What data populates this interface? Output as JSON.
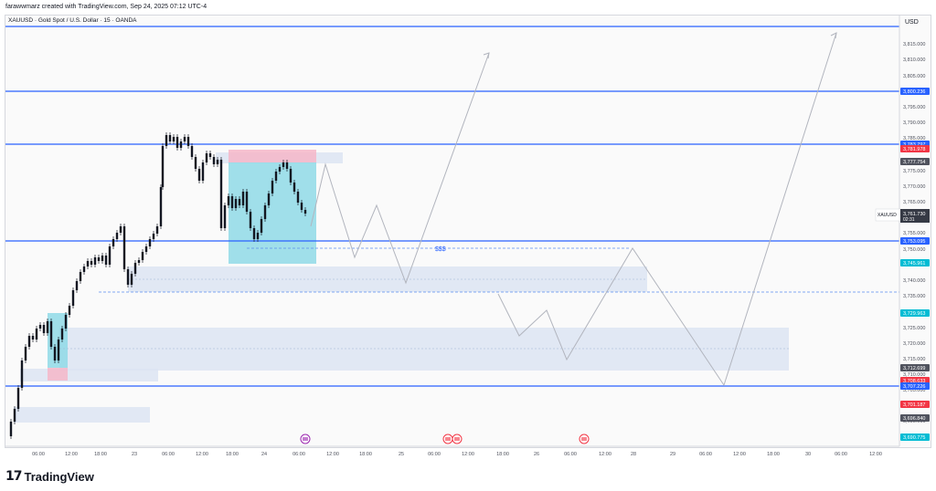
{
  "header": {
    "caption": "farawwmarz created with TradingView.com, Sep 24, 2025 07:12 UTC-4",
    "symbol_line": "XAUUSD · Gold Spot / U.S. Dollar · 15 · OANDA",
    "currency": "USD"
  },
  "price_axis": {
    "ticks": [
      "3,815.000",
      "3,810.000",
      "3,805.000",
      "3,795.000",
      "3,790.000",
      "3,785.000",
      "3,775.000",
      "3,770.000",
      "3,765.000",
      "3,755.000",
      "3,750.000",
      "3,740.000",
      "3,735.000",
      "3,725.000",
      "3,720.000",
      "3,715.000",
      "3,710.000",
      "3,705.000",
      "3,695.000"
    ]
  },
  "price_labels": [
    {
      "text": "3,800.236",
      "color": "#2962ff"
    },
    {
      "text": "3,783.797",
      "color": "#2962ff"
    },
    {
      "text": "3,781.978",
      "color": "#f23645"
    },
    {
      "text": "3,777.754",
      "color": "#50535e"
    },
    {
      "text": "3,753.095",
      "color": "#2962ff"
    },
    {
      "text": "3,745.961",
      "color": "#00bcd4"
    },
    {
      "text": "3,729.963",
      "color": "#00bcd4"
    },
    {
      "text": "3,712.699",
      "color": "#50535e"
    },
    {
      "text": "3,708.633",
      "color": "#f23645"
    },
    {
      "text": "3,707.226",
      "color": "#2962ff"
    },
    {
      "text": "3,701.187",
      "color": "#f23645"
    },
    {
      "text": "3,696.840",
      "color": "#50535e"
    },
    {
      "text": "3,690.775",
      "color": "#00bcd4"
    }
  ],
  "current_price": {
    "symbol": "XAUUSD",
    "price": "3,761.730",
    "countdown": "02:31",
    "color": "#363a45"
  },
  "time_axis": [
    "06:00",
    "12:00",
    "18:00",
    "23",
    "06:00",
    "12:00",
    "18:00",
    "24",
    "06:00",
    "12:00",
    "18:00",
    "25",
    "06:00",
    "12:00",
    "18:00",
    "26",
    "06:00",
    "12:00",
    "28",
    "29",
    "06:00",
    "12:00",
    "18:00",
    "30",
    "06:00",
    "12:00"
  ],
  "annotations": {
    "liquidity_label": "$$$"
  },
  "branding": {
    "logo": "17",
    "name": "TradingView"
  },
  "colors": {
    "level_line": "#2962ff",
    "zone_fill": "#dce4f2",
    "buy_box": "#8fd9e6",
    "sell_box": "#f5b6c8",
    "candles": "#131722",
    "projection": "#b2b5be"
  }
}
